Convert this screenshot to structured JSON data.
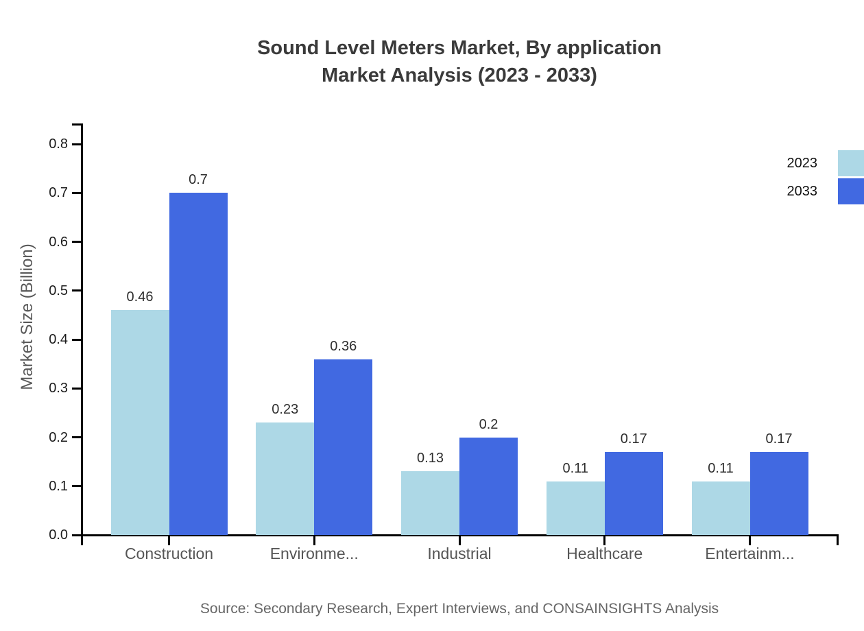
{
  "title": {
    "line1": "Sound Level Meters Market, By application",
    "line2": "Market Analysis (2023 - 2033)"
  },
  "chart_data": {
    "type": "bar",
    "categories": [
      "Construction",
      "Environme...",
      "Industrial",
      "Healthcare",
      "Entertainm..."
    ],
    "series": [
      {
        "name": "2023",
        "color": "#ADD8E6",
        "values": [
          0.46,
          0.23,
          0.13,
          0.11,
          0.11
        ]
      },
      {
        "name": "2033",
        "color": "#4169E1",
        "values": [
          0.7,
          0.36,
          0.2,
          0.17,
          0.17
        ]
      }
    ],
    "title": "Sound Level Meters Market, By application Market Analysis (2023 - 2033)",
    "xlabel": "",
    "ylabel": "Market Size (Billion)",
    "ylim": [
      0.0,
      0.84
    ],
    "yticks": [
      0.0,
      0.1,
      0.2,
      0.3,
      0.4,
      0.5,
      0.6,
      0.7,
      0.8
    ],
    "grid": false,
    "legend_position": "upper-right",
    "value_labels_shown": true
  },
  "legend": {
    "entries": [
      {
        "label": "2023",
        "color": "#ADD8E6"
      },
      {
        "label": "2033",
        "color": "#4169E1"
      }
    ]
  },
  "colors": {
    "series_2023": "#ADD8E6",
    "series_2033": "#4169E1",
    "axis": "#000000",
    "title_text": "#3a3a3a",
    "category_text": "#555555",
    "source_text": "#666666"
  },
  "source": "Source: Secondary Research, Expert Interviews, and CONSAINSIGHTS Analysis"
}
